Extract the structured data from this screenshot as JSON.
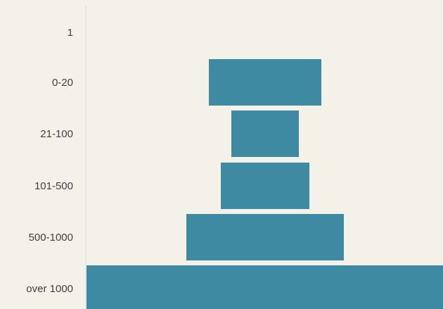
{
  "chart_data": {
    "type": "bar",
    "orientation": "horizontal-centered",
    "title": "",
    "xlabel": "",
    "ylabel": "",
    "categories": [
      "1",
      "0-20",
      "21-100",
      "101-500",
      "500-1000",
      "over 1000"
    ],
    "values": [
      0,
      160,
      96,
      126,
      224,
      520
    ],
    "bar_color": "#3d8aa2",
    "background_color": "#f3f1e8",
    "axis_color": "#d9d9d9",
    "grid": false,
    "legend": "none"
  }
}
